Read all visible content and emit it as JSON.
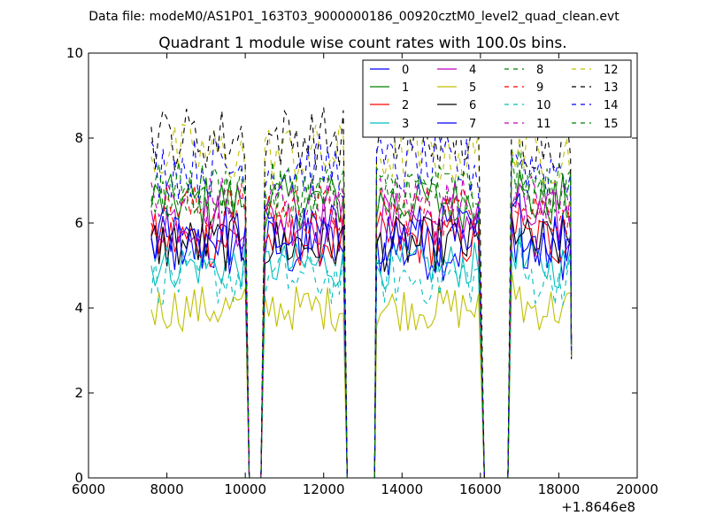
{
  "chart_data": {
    "type": "line",
    "suptitle": "Data file: modeM0/AS1P01_163T03_9000000186_00920cztM0_level2_quad_clean.evt",
    "title": "Quadrant 1 module wise count rates with 100.0s bins.",
    "xlabel": "",
    "ylabel": "",
    "offset_text": "+1.8646e8",
    "xlim": [
      6000,
      20000
    ],
    "ylim": [
      0,
      10
    ],
    "xticks": [
      6000,
      8000,
      10000,
      12000,
      14000,
      16000,
      18000,
      20000
    ],
    "yticks": [
      0,
      2,
      4,
      6,
      8,
      10
    ],
    "legend_location": "upper right",
    "legend_columns": 4,
    "bin_width_s": 100,
    "segments": [
      {
        "start": 7600,
        "end": 10000
      },
      {
        "start": 10500,
        "end": 12500
      },
      {
        "start": 13350,
        "end": 16000
      },
      {
        "start": 16800,
        "end": 18300
      }
    ],
    "gaps": [
      {
        "start": 10100,
        "end": 10400
      },
      {
        "start": 12600,
        "end": 13300
      },
      {
        "start": 16100,
        "end": 16700
      }
    ],
    "series": [
      {
        "name": "0",
        "color": "#0000ff",
        "dash": "solid",
        "mean": 5.4,
        "noise": 0.35
      },
      {
        "name": "1",
        "color": "#008000",
        "dash": "solid",
        "mean": 6.5,
        "noise": 0.3
      },
      {
        "name": "2",
        "color": "#ff0000",
        "dash": "solid",
        "mean": 5.6,
        "noise": 0.3
      },
      {
        "name": "3",
        "color": "#00bfbf",
        "dash": "solid",
        "mean": 5.0,
        "noise": 0.25
      },
      {
        "name": "4",
        "color": "#bf00bf",
        "dash": "solid",
        "mean": 6.1,
        "noise": 0.3
      },
      {
        "name": "5",
        "color": "#bfbf00",
        "dash": "solid",
        "mean": 4.0,
        "noise": 0.25
      },
      {
        "name": "6",
        "color": "#000000",
        "dash": "solid",
        "mean": 5.5,
        "noise": 0.3
      },
      {
        "name": "7",
        "color": "#0000ff",
        "dash": "solid",
        "mean": 5.7,
        "noise": 0.35
      },
      {
        "name": "8",
        "color": "#008000",
        "dash": "dashed",
        "mean": 6.7,
        "noise": 0.3
      },
      {
        "name": "9",
        "color": "#ff0000",
        "dash": "dashed",
        "mean": 6.3,
        "noise": 0.3
      },
      {
        "name": "10",
        "color": "#00bfbf",
        "dash": "dashed",
        "mean": 4.7,
        "noise": 0.3
      },
      {
        "name": "11",
        "color": "#bf00bf",
        "dash": "dashed",
        "mean": 6.5,
        "noise": 0.3
      },
      {
        "name": "12",
        "color": "#bfbf00",
        "dash": "dashed",
        "mean": 7.6,
        "noise": 0.35
      },
      {
        "name": "13",
        "color": "#000000",
        "dash": "dashed",
        "mean": 8.0,
        "noise": 0.35
      },
      {
        "name": "14",
        "color": "#0000ff",
        "dash": "dashed",
        "mean": 7.3,
        "noise": 0.35
      },
      {
        "name": "15",
        "color": "#008000",
        "dash": "dashed",
        "mean": 6.8,
        "noise": 0.3
      }
    ]
  }
}
